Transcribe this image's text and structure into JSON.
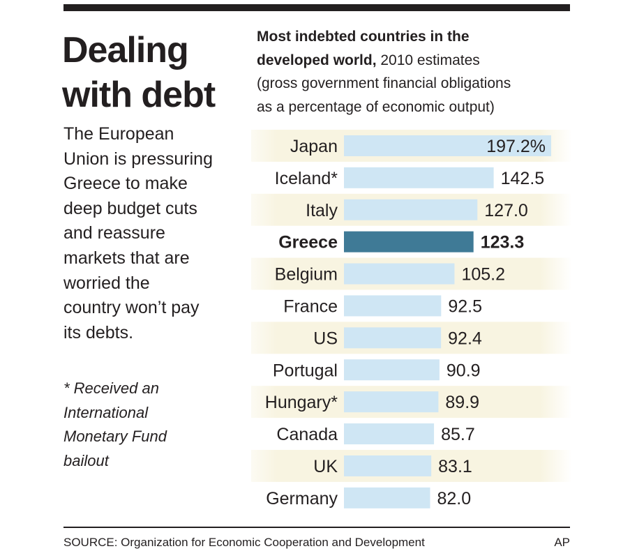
{
  "headline": [
    "Dealing",
    "with debt"
  ],
  "chatter": [
    "The European",
    "Union is pressuring",
    "Greece to make",
    "deep budget cuts",
    "and reassure",
    "markets that are",
    "worried the",
    "country won’t pay",
    "its debts."
  ],
  "footnote": [
    "* Received an",
    "International",
    "Monetary Fund",
    "bailout"
  ],
  "chart_title": {
    "bold": "Most indebted countries in the",
    "bold2": "developed world,",
    "rest2": " 2010 estimates",
    "line3": "(gross government financial obligations",
    "line4": "as a percentage of economic output)"
  },
  "chart_data": {
    "type": "bar",
    "orientation": "horizontal",
    "title": "Most indebted countries in the developed world, 2010 estimates",
    "subtitle": "(gross government financial obligations as a percentage of economic output)",
    "xlabel": "",
    "ylabel": "",
    "unit": "%",
    "xlim": [
      0,
      200
    ],
    "grid": false,
    "categories": [
      "Japan",
      "Iceland*",
      "Italy",
      "Greece",
      "Belgium",
      "France",
      "US",
      "Portugal",
      "Hungary*",
      "Canada",
      "UK",
      "Germany"
    ],
    "values": [
      197.2,
      142.5,
      127.0,
      123.3,
      105.2,
      92.5,
      92.4,
      90.9,
      89.9,
      85.7,
      83.1,
      82.0
    ],
    "labels": [
      "197.2%",
      "142.5",
      "127.0",
      "123.3",
      "105.2",
      "92.5",
      "92.4",
      "90.9",
      "89.9",
      "85.7",
      "83.1",
      "82.0"
    ],
    "highlight": "Greece",
    "colors": {
      "bar": "#cfe6f4",
      "highlight": "#3f7a96",
      "band": "#f8f4e1",
      "text": "#231f20"
    }
  },
  "source": "SOURCE: Organization for Economic Cooperation and Development",
  "credit": "AP"
}
